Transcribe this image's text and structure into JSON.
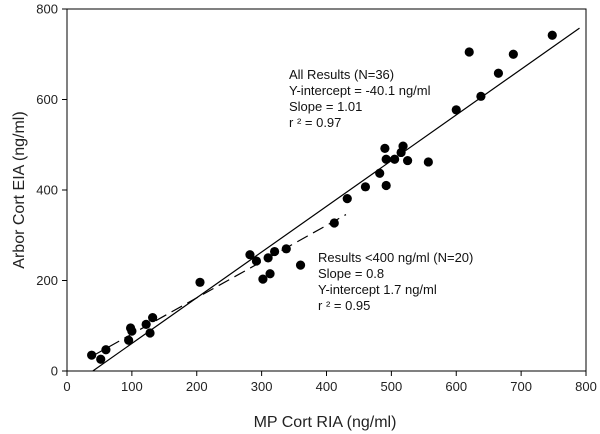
{
  "chart_data": {
    "type": "scatter",
    "title": "",
    "xlabel": "MP Cort RIA (ng/ml)",
    "ylabel": "Arbor Cort EIA (ng/ml)",
    "xlim": [
      0,
      800
    ],
    "ylim": [
      0,
      800
    ],
    "xticks": [
      0,
      100,
      200,
      300,
      400,
      500,
      600,
      700,
      800
    ],
    "yticks": [
      0,
      200,
      400,
      600,
      800
    ],
    "grid": false,
    "legend": "none",
    "series": [
      {
        "values": [
          [
            38,
            35
          ],
          [
            52,
            26
          ],
          [
            60,
            47
          ],
          [
            95,
            68
          ],
          [
            98,
            95
          ],
          [
            100,
            88
          ],
          [
            122,
            103
          ],
          [
            128,
            84
          ],
          [
            132,
            118
          ],
          [
            205,
            196
          ],
          [
            282,
            257
          ],
          [
            292,
            243
          ],
          [
            302,
            203
          ],
          [
            310,
            250
          ],
          [
            313,
            215
          ],
          [
            320,
            264
          ],
          [
            338,
            270
          ],
          [
            360,
            234
          ],
          [
            412,
            327
          ],
          [
            432,
            381
          ],
          [
            460,
            407
          ],
          [
            482,
            437
          ],
          [
            490,
            492
          ],
          [
            492,
            410
          ],
          [
            492,
            468
          ],
          [
            505,
            468
          ],
          [
            515,
            483
          ],
          [
            518,
            497
          ],
          [
            525,
            465
          ],
          [
            557,
            462
          ],
          [
            600,
            577
          ],
          [
            620,
            705
          ],
          [
            638,
            607
          ],
          [
            665,
            658
          ],
          [
            688,
            700
          ],
          [
            748,
            742
          ]
        ]
      }
    ],
    "fits": [
      {
        "name": "all",
        "style": "solid",
        "x": [
          40,
          790
        ],
        "y": [
          0.3,
          757.8
        ]
      },
      {
        "name": "low",
        "style": "dashed",
        "x": [
          40,
          430
        ],
        "y": [
          33.7,
          345.7
        ]
      }
    ],
    "annotations": [
      {
        "lines": [
          "All Results (N=36)",
          "Y-intercept = -40.1 ng/ml",
          "Slope = 1.01",
          "r ² = 0.97"
        ]
      },
      {
        "lines": [
          "Results <400 ng/ml (N=20)",
          "Slope = 0.8",
          "Y-intercept 1.7 ng/ml",
          "r ² = 0.95"
        ]
      }
    ]
  }
}
